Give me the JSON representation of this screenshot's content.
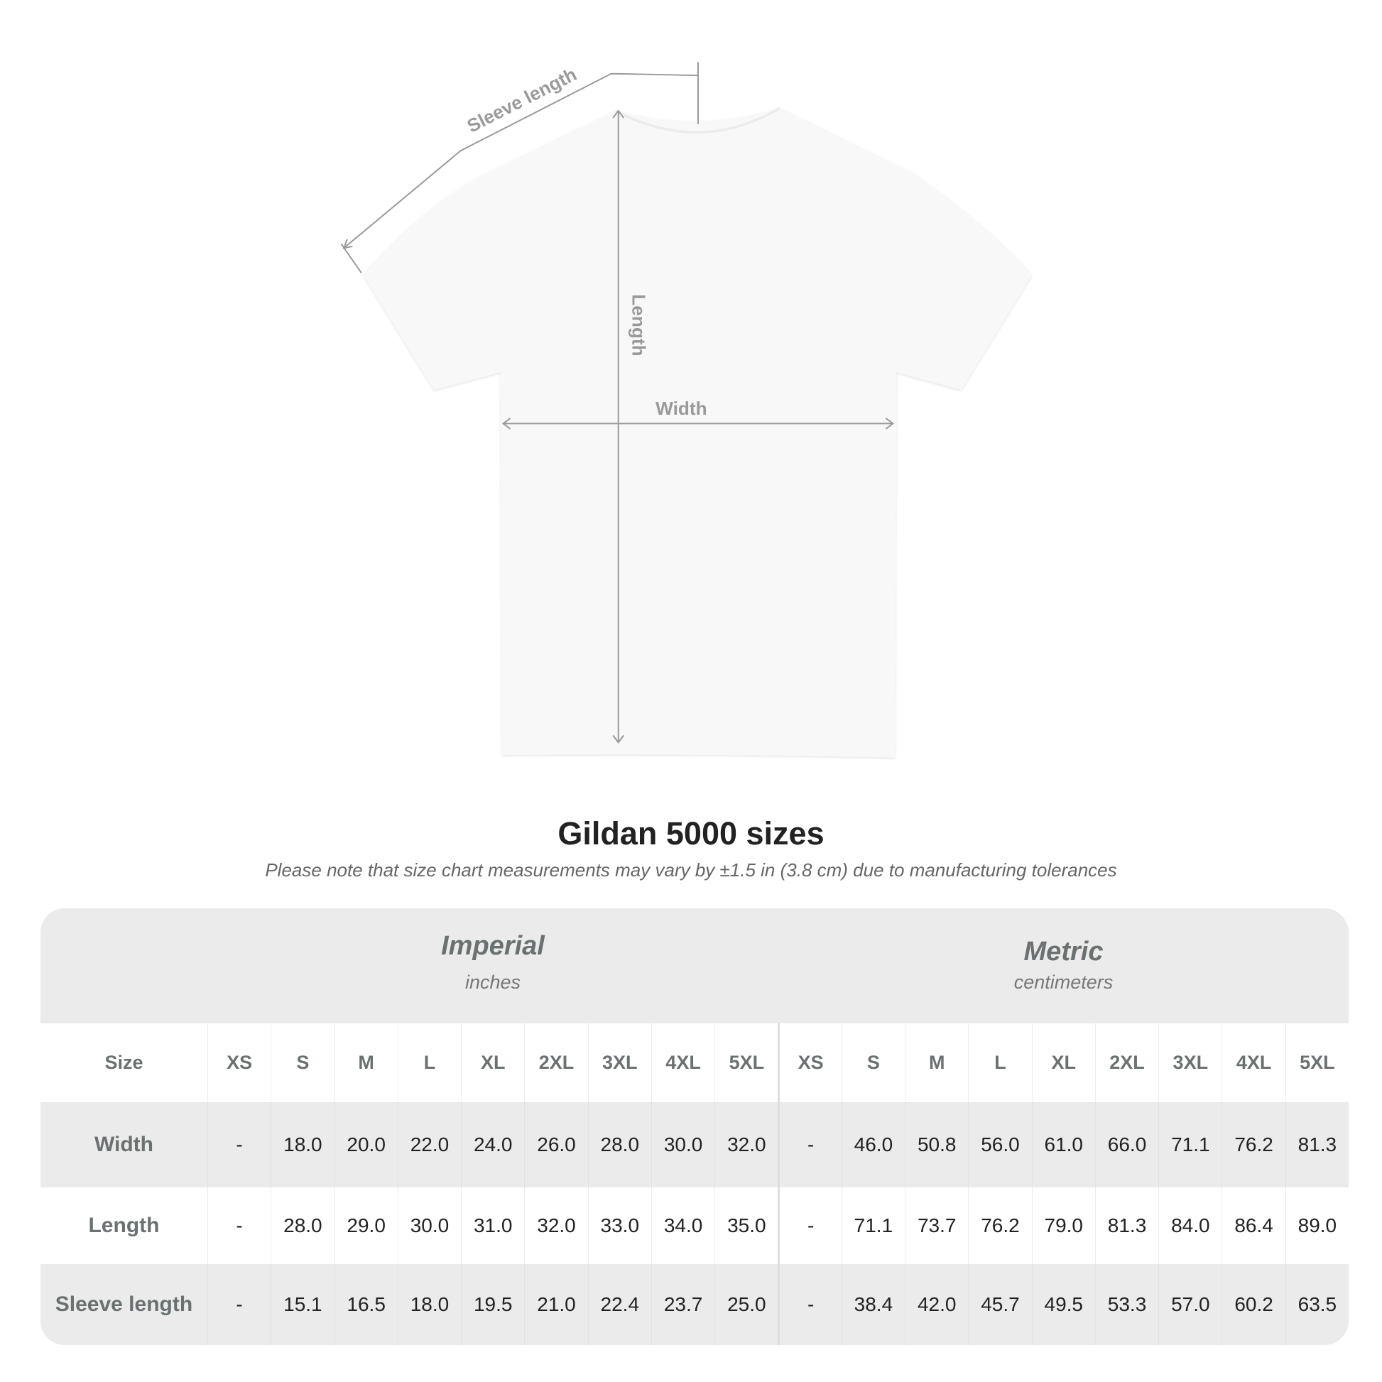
{
  "diagram": {
    "sleeve_label": "Sleeve length",
    "length_label": "Length",
    "width_label": "Width"
  },
  "title": "Gildan 5000 sizes",
  "note": "Please note that size chart measurements may vary by ±1.5 in (3.8 cm) due to manufacturing tolerances",
  "table": {
    "imperial": {
      "name": "Imperial",
      "unit": "inches"
    },
    "metric": {
      "name": "Metric",
      "unit": "centimeters"
    },
    "size_label": "Size",
    "sizes": [
      "XS",
      "S",
      "M",
      "L",
      "XL",
      "2XL",
      "3XL",
      "4XL",
      "5XL"
    ],
    "rows": [
      {
        "label": "Width",
        "imperial": [
          "-",
          "18.0",
          "20.0",
          "22.0",
          "24.0",
          "26.0",
          "28.0",
          "30.0",
          "32.0"
        ],
        "metric": [
          "-",
          "46.0",
          "50.8",
          "56.0",
          "61.0",
          "66.0",
          "71.1",
          "76.2",
          "81.3"
        ]
      },
      {
        "label": "Length",
        "imperial": [
          "-",
          "28.0",
          "29.0",
          "30.0",
          "31.0",
          "32.0",
          "33.0",
          "34.0",
          "35.0"
        ],
        "metric": [
          "-",
          "71.1",
          "73.7",
          "76.2",
          "79.0",
          "81.3",
          "84.0",
          "86.4",
          "89.0"
        ]
      },
      {
        "label": "Sleeve length",
        "imperial": [
          "-",
          "15.1",
          "16.5",
          "18.0",
          "19.5",
          "21.0",
          "22.4",
          "23.7",
          "25.0"
        ],
        "metric": [
          "-",
          "38.4",
          "42.0",
          "45.7",
          "49.5",
          "53.3",
          "57.0",
          "60.2",
          "63.5"
        ]
      }
    ]
  },
  "colors": {
    "table_bg": "#ebebeb",
    "header_text": "#6b7070",
    "value_text": "#222222",
    "measure_line": "#999999"
  }
}
